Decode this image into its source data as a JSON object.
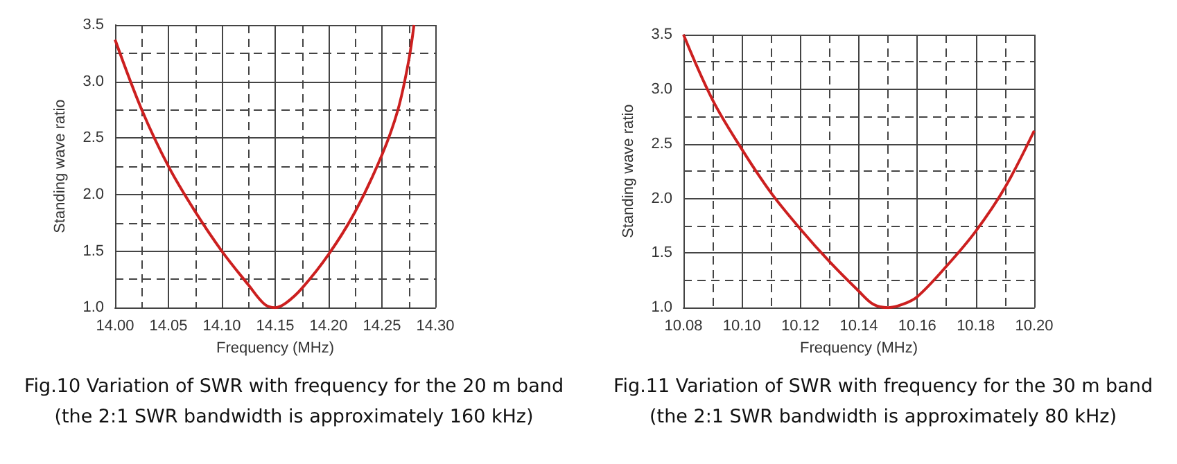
{
  "chart_data": [
    {
      "type": "line",
      "xlabel": "Frequency (MHz)",
      "ylabel": "Standing wave ratio",
      "annotations": [
        "Fig.10 Variation of SWR with frequency for the 20 m band",
        "(the 2:1 SWR bandwidth is approximately 160 kHz)"
      ],
      "x": [
        14.0,
        14.025,
        14.05,
        14.075,
        14.1,
        14.125,
        14.14,
        14.15,
        14.16,
        14.175,
        14.2,
        14.225,
        14.25,
        14.265,
        14.275,
        14.28
      ],
      "series": [
        {
          "color": "#cc1f1f",
          "values": [
            3.37,
            2.75,
            2.25,
            1.85,
            1.5,
            1.2,
            1.03,
            1.0,
            1.04,
            1.17,
            1.47,
            1.85,
            2.35,
            2.75,
            3.18,
            3.5
          ]
        }
      ],
      "xlim": [
        14.0,
        14.3
      ],
      "xticks": [
        {
          "value": 14.0,
          "label": "14.00"
        },
        {
          "value": 14.05,
          "label": "14.05"
        },
        {
          "value": 14.1,
          "label": "14.10"
        },
        {
          "value": 14.15,
          "label": "14.15"
        },
        {
          "value": 14.2,
          "label": "14.20"
        },
        {
          "value": 14.25,
          "label": "14.25"
        },
        {
          "value": 14.3,
          "label": "14.30"
        }
      ],
      "ylim": [
        1,
        3.5
      ],
      "yticks": [
        {
          "value": 1,
          "label": "1.0"
        },
        {
          "value": 1.5,
          "label": "1.5"
        },
        {
          "value": 2,
          "label": "2.0"
        },
        {
          "value": 2.5,
          "label": "2.5"
        },
        {
          "value": 3,
          "label": "3.0"
        },
        {
          "value": 3.5,
          "label": "3.5"
        }
      ],
      "grid": true,
      "marker": "none",
      "line_style": "solid"
    },
    {
      "type": "line",
      "xlabel": "Frequency (MHz)",
      "ylabel": "Standing wave ratio",
      "annotations": [
        "Fig.11 Variation of SWR with frequency for the 30 m band",
        "(the 2:1 SWR bandwidth is approximately 80 kHz)"
      ],
      "x": [
        10.08,
        10.09,
        10.1,
        10.11,
        10.12,
        10.13,
        10.14,
        10.145,
        10.15,
        10.155,
        10.16,
        10.17,
        10.18,
        10.19,
        10.2
      ],
      "series": [
        {
          "color": "#cc1f1f",
          "values": [
            3.5,
            2.9,
            2.45,
            2.05,
            1.72,
            1.42,
            1.15,
            1.03,
            1.0,
            1.03,
            1.1,
            1.38,
            1.7,
            2.1,
            2.62
          ]
        }
      ],
      "xlim": [
        10.08,
        10.2
      ],
      "xticks": [
        {
          "value": 10.08,
          "label": "10.08"
        },
        {
          "value": 10.1,
          "label": "10.10"
        },
        {
          "value": 10.12,
          "label": "10.12"
        },
        {
          "value": 10.14,
          "label": "10.14"
        },
        {
          "value": 10.16,
          "label": "10.16"
        },
        {
          "value": 10.18,
          "label": "10.18"
        },
        {
          "value": 10.2,
          "label": "10.20"
        }
      ],
      "ylim": [
        1,
        3.5
      ],
      "yticks": [
        {
          "value": 1,
          "label": "1.0"
        },
        {
          "value": 1.5,
          "label": "1.5"
        },
        {
          "value": 2,
          "label": "2.0"
        },
        {
          "value": 2.5,
          "label": "2.5"
        },
        {
          "value": 3,
          "label": "3.0"
        },
        {
          "value": 3.5,
          "label": "3.5"
        }
      ],
      "grid": true,
      "marker": "none",
      "line_style": "solid"
    }
  ]
}
